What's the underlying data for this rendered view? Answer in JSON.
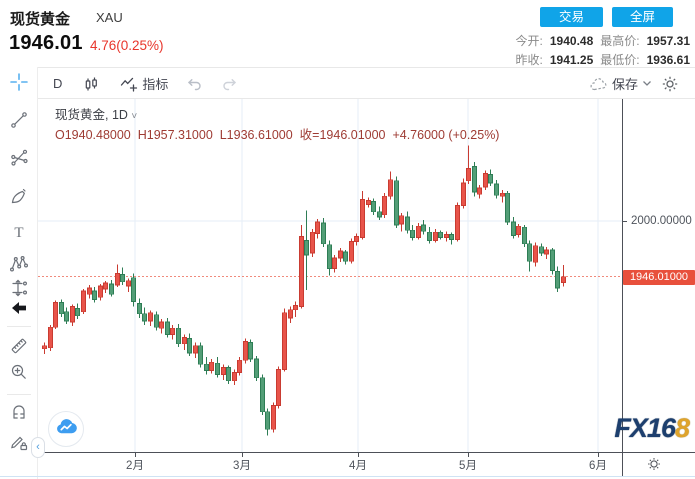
{
  "header": {
    "symbol_name": "现货黄金",
    "symbol_code": "XAU",
    "last_price": "1946.01",
    "change_text": "4.76(0.25%)",
    "trade_label": "交易",
    "fullscreen_label": "全屏",
    "stats": [
      {
        "label": "今开:",
        "value": "1940.48"
      },
      {
        "label": "最高价:",
        "value": "1957.31"
      },
      {
        "label": "昨收:",
        "value": "1941.25"
      },
      {
        "label": "最低价:",
        "value": "1936.61"
      }
    ]
  },
  "toolbar": {
    "interval": "D",
    "indicators_label": "指标",
    "save_label": "保存"
  },
  "sidebar": {
    "tools": [
      {
        "name": "crosshair"
      },
      {
        "name": "trend-line"
      },
      {
        "name": "gann-fan"
      },
      {
        "name": "brush"
      },
      {
        "name": "text"
      },
      {
        "name": "xabcd-pattern"
      },
      {
        "name": "long-position"
      },
      {
        "name": "arrow-left"
      },
      {
        "name": "ruler"
      },
      {
        "name": "zoom-in"
      },
      {
        "name": "magnet"
      },
      {
        "name": "drawing-lock"
      }
    ]
  },
  "legend": {
    "title": "现货黄金, 1D",
    "ohlc": "O1940.48000  H1957.31000  L1936.61000  收=1946.01000  +4.76000 (+0.25%)"
  },
  "axes": {
    "price_label": "2000.00000",
    "last_price_label": "1946.01000",
    "months": [
      "2月",
      "3月",
      "4月",
      "5月",
      "6月"
    ]
  },
  "watermark": {
    "brand_prefix": "FX16",
    "brand_suffix": "8"
  },
  "colors": {
    "up_fill": "#e8544a",
    "up_border": "#c93b31",
    "down_fill": "#539e77",
    "down_border": "#2e7d55",
    "accent_blue": "#10a4e8",
    "change_red": "#e8352b",
    "last_price_bg": "#e8503c",
    "grid": "#e5eef7",
    "price_line": "#f08a7c"
  },
  "chart_data": {
    "type": "candlestick",
    "title": "现货黄金 XAU, 1D",
    "convention": "red=up, green=down",
    "y_axis": {
      "labeled_level": 2000.0,
      "last_price": 1946.01
    },
    "x_axis": {
      "tick_labels": [
        "2月",
        "3月",
        "4月",
        "5月",
        "6月"
      ]
    },
    "candles_ohlc": [
      [
        1876,
        1882,
        1871,
        1879
      ],
      [
        1877,
        1899,
        1874,
        1897
      ],
      [
        1897,
        1923,
        1895,
        1921
      ],
      [
        1921,
        1924,
        1907,
        1910
      ],
      [
        1912,
        1916,
        1900,
        1903
      ],
      [
        1902,
        1919,
        1898,
        1917
      ],
      [
        1915,
        1920,
        1905,
        1908
      ],
      [
        1912,
        1934,
        1910,
        1932
      ],
      [
        1929,
        1938,
        1925,
        1935
      ],
      [
        1932,
        1936,
        1921,
        1924
      ],
      [
        1926,
        1939,
        1923,
        1937
      ],
      [
        1934,
        1942,
        1930,
        1940
      ],
      [
        1939,
        1943,
        1927,
        1929
      ],
      [
        1938,
        1958,
        1936,
        1949
      ],
      [
        1948,
        1955,
        1938,
        1941
      ],
      [
        1937,
        1944,
        1931,
        1942
      ],
      [
        1945,
        1949,
        1917,
        1922
      ],
      [
        1920,
        1925,
        1906,
        1910
      ],
      [
        1910,
        1916,
        1899,
        1903
      ],
      [
        1903,
        1913,
        1898,
        1911
      ],
      [
        1909,
        1912,
        1894,
        1897
      ],
      [
        1896,
        1905,
        1891,
        1902
      ],
      [
        1902,
        1906,
        1887,
        1890
      ],
      [
        1890,
        1899,
        1885,
        1896
      ],
      [
        1896,
        1900,
        1878,
        1881
      ],
      [
        1881,
        1890,
        1875,
        1887
      ],
      [
        1886,
        1891,
        1869,
        1872
      ],
      [
        1872,
        1882,
        1867,
        1879
      ],
      [
        1879,
        1882,
        1858,
        1861
      ],
      [
        1861,
        1868,
        1851,
        1855
      ],
      [
        1855,
        1866,
        1852,
        1863
      ],
      [
        1862,
        1868,
        1848,
        1851
      ],
      [
        1851,
        1861,
        1846,
        1858
      ],
      [
        1858,
        1860,
        1842,
        1845
      ],
      [
        1845,
        1856,
        1841,
        1853
      ],
      [
        1853,
        1868,
        1850,
        1865
      ],
      [
        1865,
        1886,
        1862,
        1883
      ],
      [
        1882,
        1885,
        1863,
        1866
      ],
      [
        1866,
        1869,
        1845,
        1848
      ],
      [
        1848,
        1851,
        1812,
        1815
      ],
      [
        1815,
        1818,
        1792,
        1798
      ],
      [
        1798,
        1824,
        1795,
        1821
      ],
      [
        1821,
        1859,
        1818,
        1856
      ],
      [
        1856,
        1915,
        1854,
        1911
      ],
      [
        1906,
        1917,
        1901,
        1914
      ],
      [
        1914,
        1922,
        1907,
        1918
      ],
      [
        1917,
        1996,
        1915,
        1985
      ],
      [
        1981,
        2010,
        1933,
        1967
      ],
      [
        1969,
        1992,
        1965,
        1989
      ],
      [
        1988,
        2002,
        1983,
        1999
      ],
      [
        1998,
        2003,
        1975,
        1978
      ],
      [
        1977,
        1981,
        1947,
        1954
      ],
      [
        1954,
        1967,
        1950,
        1964
      ],
      [
        1964,
        1974,
        1960,
        1971
      ],
      [
        1970,
        1972,
        1958,
        1961
      ],
      [
        1961,
        1983,
        1959,
        1980
      ],
      [
        1980,
        1988,
        1976,
        1985
      ],
      [
        1984,
        2029,
        1982,
        2021
      ],
      [
        2016,
        2023,
        2013,
        2020
      ],
      [
        2019,
        2022,
        2006,
        2009
      ],
      [
        2009,
        2014,
        2001,
        2004
      ],
      [
        2006,
        2027,
        2003,
        2024
      ],
      [
        2024,
        2048,
        2021,
        2040
      ],
      [
        2039,
        2043,
        1993,
        1996
      ],
      [
        1997,
        2008,
        1990,
        2005
      ],
      [
        2004,
        2009,
        1988,
        1991
      ],
      [
        1991,
        1996,
        1981,
        1984
      ],
      [
        1984,
        1998,
        1982,
        1995
      ],
      [
        1996,
        2001,
        1987,
        1990
      ],
      [
        1989,
        1994,
        1978,
        1981
      ],
      [
        1981,
        1992,
        1979,
        1989
      ],
      [
        1989,
        1991,
        1982,
        1984
      ],
      [
        1984,
        1990,
        1980,
        1987
      ],
      [
        1987,
        1989,
        1977,
        1982
      ],
      [
        1982,
        2018,
        1980,
        2015
      ],
      [
        2015,
        2041,
        2012,
        2037
      ],
      [
        2039,
        2073,
        2036,
        2051
      ],
      [
        2053,
        2057,
        2024,
        2028
      ],
      [
        2026,
        2035,
        2022,
        2032
      ],
      [
        2033,
        2049,
        2030,
        2046
      ],
      [
        2045,
        2050,
        2034,
        2037
      ],
      [
        2036,
        2040,
        2022,
        2025
      ],
      [
        2024,
        2030,
        2018,
        2027
      ],
      [
        2027,
        2029,
        1996,
        1999
      ],
      [
        1999,
        2004,
        1983,
        1986
      ],
      [
        1987,
        1997,
        1984,
        1995
      ],
      [
        1994,
        1996,
        1975,
        1978
      ],
      [
        1978,
        1981,
        1951,
        1961
      ],
      [
        1960,
        1979,
        1956,
        1976
      ],
      [
        1975,
        1978,
        1966,
        1969
      ],
      [
        1968,
        1975,
        1963,
        1972
      ],
      [
        1972,
        1974,
        1948,
        1952
      ],
      [
        1951,
        1956,
        1931,
        1935
      ],
      [
        1940.48,
        1957.31,
        1936.61,
        1946.01
      ]
    ]
  }
}
